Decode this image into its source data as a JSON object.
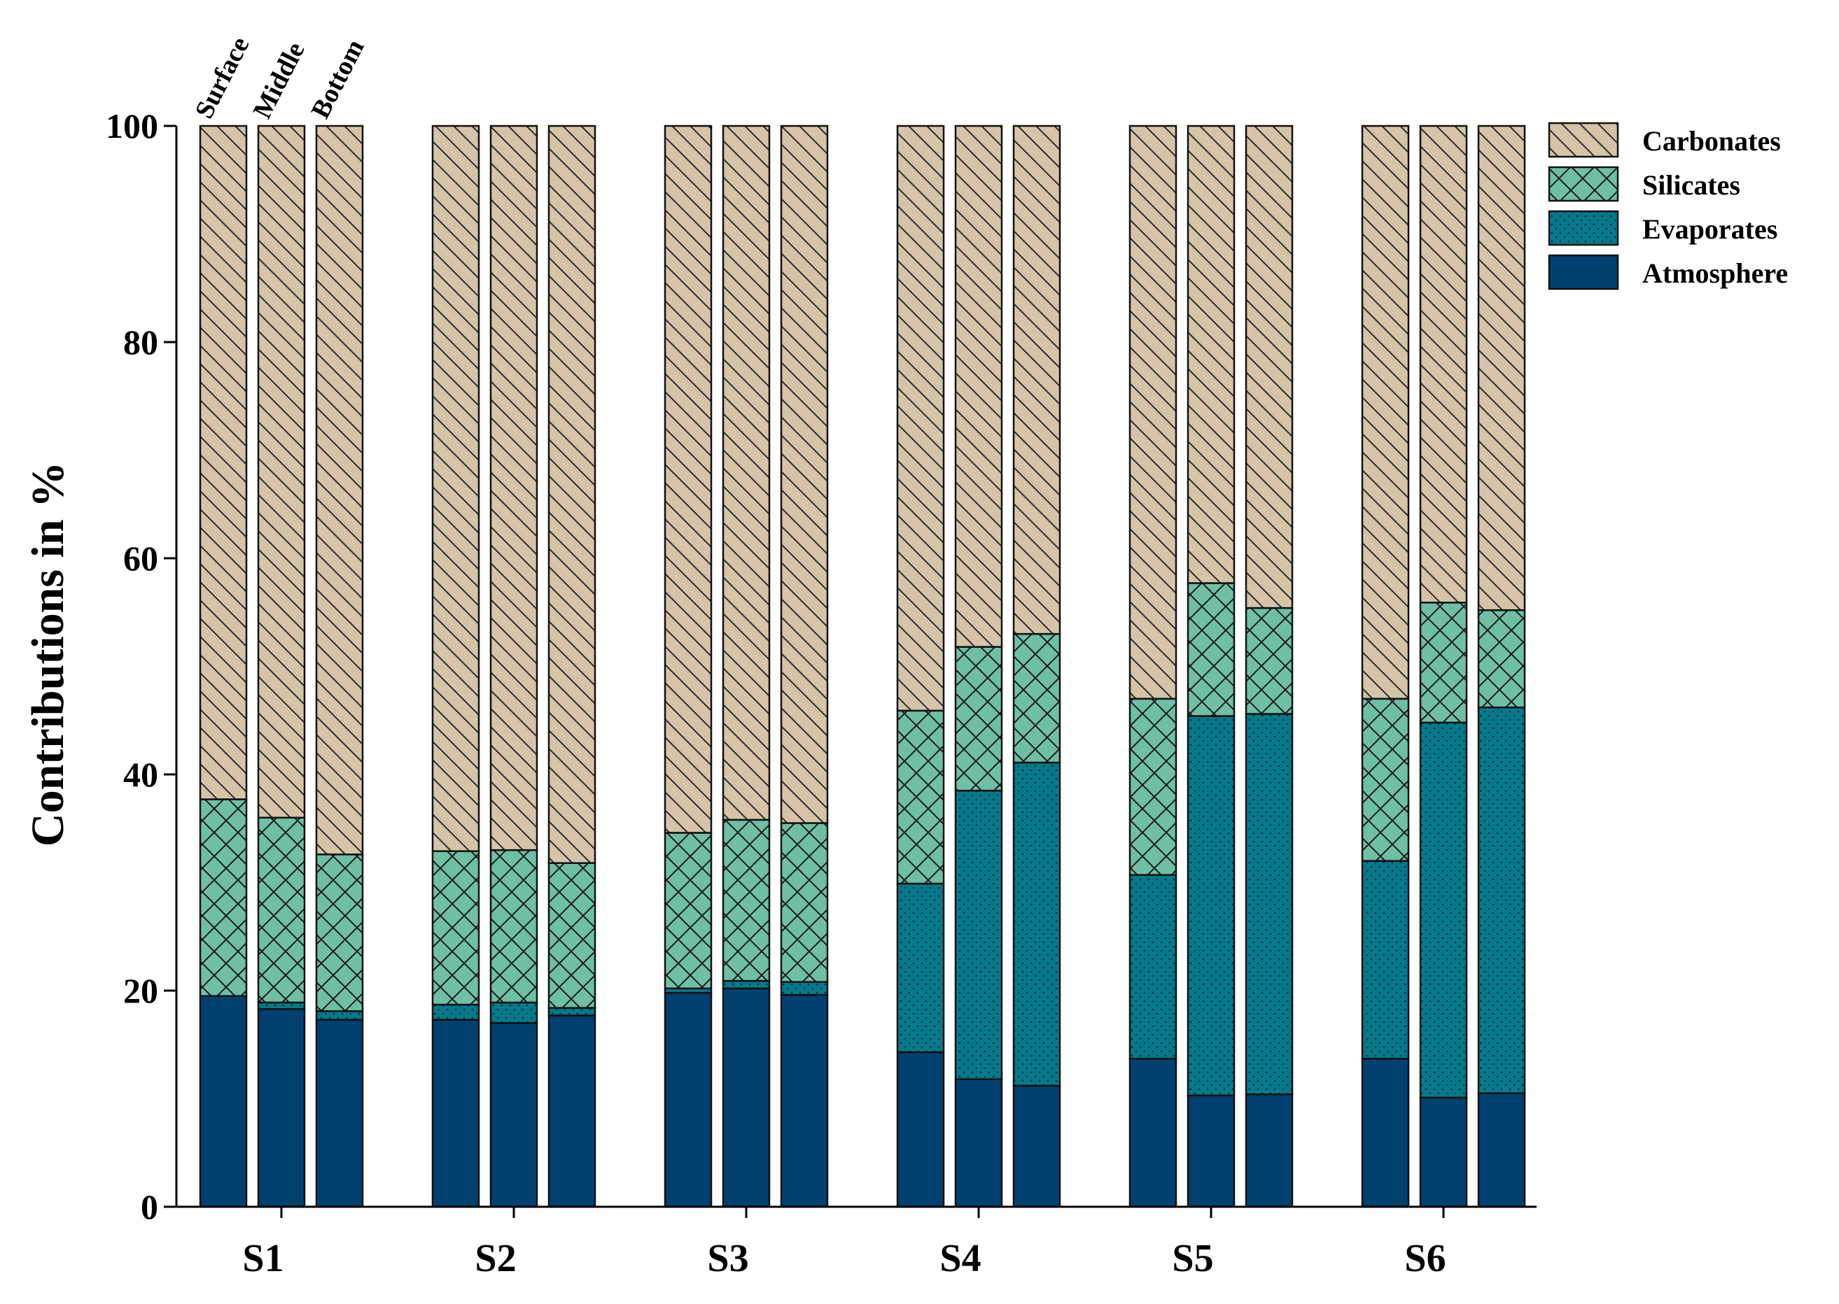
{
  "chart_data": {
    "type": "bar",
    "stacked": true,
    "categories": [
      "S1",
      "S2",
      "S3",
      "S4",
      "S5",
      "S6"
    ],
    "positions": [
      "Surface",
      "Middle",
      "Bottom"
    ],
    "ylabel": "Contributions in %",
    "xlabel": "",
    "ylim": [
      0,
      100
    ],
    "yticks": [
      0,
      20,
      40,
      60,
      80,
      100
    ],
    "legend_position": "top-right",
    "grid": false,
    "colors": {
      "Atmosphere": "#004070",
      "Evaporates": "#037a8c",
      "Silicates": "#6ebfa6",
      "Carbonates": "#d5c4a8"
    },
    "legend": [
      "Carbonates",
      "Silicates",
      "Evaporates",
      "Atmosphere"
    ],
    "series": [
      {
        "name": "Atmosphere",
        "values": [
          [
            19.5,
            18.3,
            17.3
          ],
          [
            17.3,
            17.0,
            17.7
          ],
          [
            19.8,
            20.2,
            19.6
          ],
          [
            14.3,
            11.8,
            11.2
          ],
          [
            13.7,
            10.3,
            10.4
          ],
          [
            13.7,
            10.1,
            10.5
          ]
        ]
      },
      {
        "name": "Evaporates",
        "values": [
          [
            0.0,
            0.6,
            0.8
          ],
          [
            1.4,
            1.9,
            0.7
          ],
          [
            0.4,
            0.7,
            1.2
          ],
          [
            15.6,
            26.7,
            29.9
          ],
          [
            17.0,
            35.1,
            35.2
          ],
          [
            18.3,
            34.7,
            35.7
          ]
        ]
      },
      {
        "name": "Silicates",
        "values": [
          [
            18.2,
            17.1,
            14.5
          ],
          [
            14.2,
            14.1,
            13.4
          ],
          [
            14.4,
            14.9,
            14.7
          ],
          [
            16.0,
            13.3,
            11.9
          ],
          [
            16.3,
            12.3,
            9.8
          ],
          [
            15.0,
            11.1,
            9.0
          ]
        ]
      },
      {
        "name": "Carbonates",
        "values": [
          [
            62.3,
            64.0,
            67.4
          ],
          [
            67.1,
            67.0,
            68.2
          ],
          [
            65.4,
            64.2,
            64.5
          ],
          [
            54.1,
            48.2,
            47.0
          ],
          [
            53.0,
            42.3,
            44.6
          ],
          [
            53.0,
            44.1,
            44.8
          ]
        ]
      }
    ]
  }
}
